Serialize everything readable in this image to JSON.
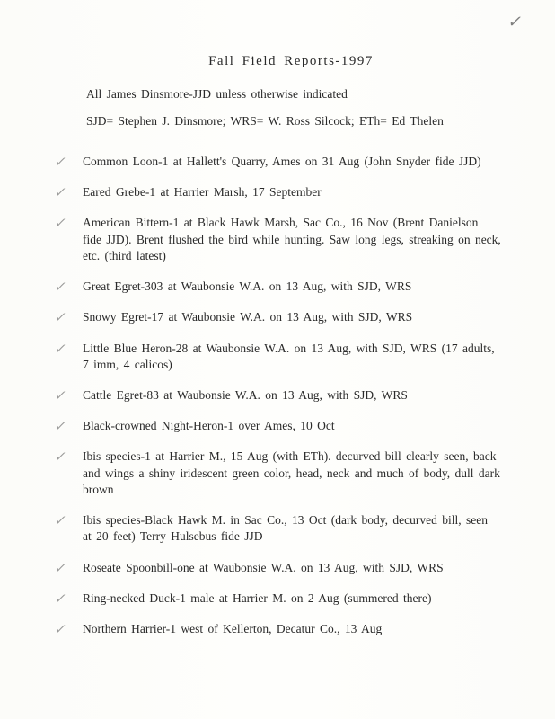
{
  "corner_mark": "✓",
  "title": "Fall  Field  Reports-1997",
  "intro1": "All James Dinsmore-JJD unless otherwise indicated",
  "intro2": "SJD= Stephen J. Dinsmore; WRS= W. Ross Silcock; ETh= Ed Thelen",
  "check_glyph": "✓",
  "entries": [
    {
      "text": "Common Loon-1 at Hallett's Quarry, Ames on 31 Aug (John Snyder fide JJD)"
    },
    {
      "text": "Eared Grebe-1 at Harrier Marsh, 17 September"
    },
    {
      "text": "American Bittern-1 at Black Hawk Marsh, Sac Co., 16 Nov (Brent Danielson fide JJD). Brent flushed the bird while hunting. Saw long legs, streaking on neck, etc. (third latest)"
    },
    {
      "text": "Great Egret-303 at Waubonsie W.A. on 13 Aug, with SJD, WRS"
    },
    {
      "text": "Snowy Egret-17 at Waubonsie W.A. on 13 Aug, with SJD, WRS"
    },
    {
      "text": "Little Blue Heron-28 at Waubonsie W.A. on 13 Aug, with SJD, WRS (17 adults, 7 imm, 4 calicos)"
    },
    {
      "text": "Cattle Egret-83 at Waubonsie W.A. on 13 Aug, with SJD, WRS"
    },
    {
      "text": "Black-crowned Night-Heron-1 over Ames, 10 Oct"
    },
    {
      "text": "Ibis species-1 at Harrier M., 15 Aug (with ETh). decurved bill clearly seen, back and wings a shiny iridescent green color, head, neck and much of body, dull dark brown"
    },
    {
      "text": "Ibis species-Black Hawk M. in Sac Co., 13 Oct (dark body, decurved bill, seen at 20 feet)   Terry Hulsebus fide JJD"
    },
    {
      "text": "Roseate Spoonbill-one at Waubonsie W.A. on 13 Aug, with SJD, WRS"
    },
    {
      "text": "Ring-necked Duck-1 male at Harrier M. on 2 Aug (summered there)"
    },
    {
      "text": "Northern Harrier-1 west of Kellerton, Decatur Co., 13 Aug"
    }
  ]
}
